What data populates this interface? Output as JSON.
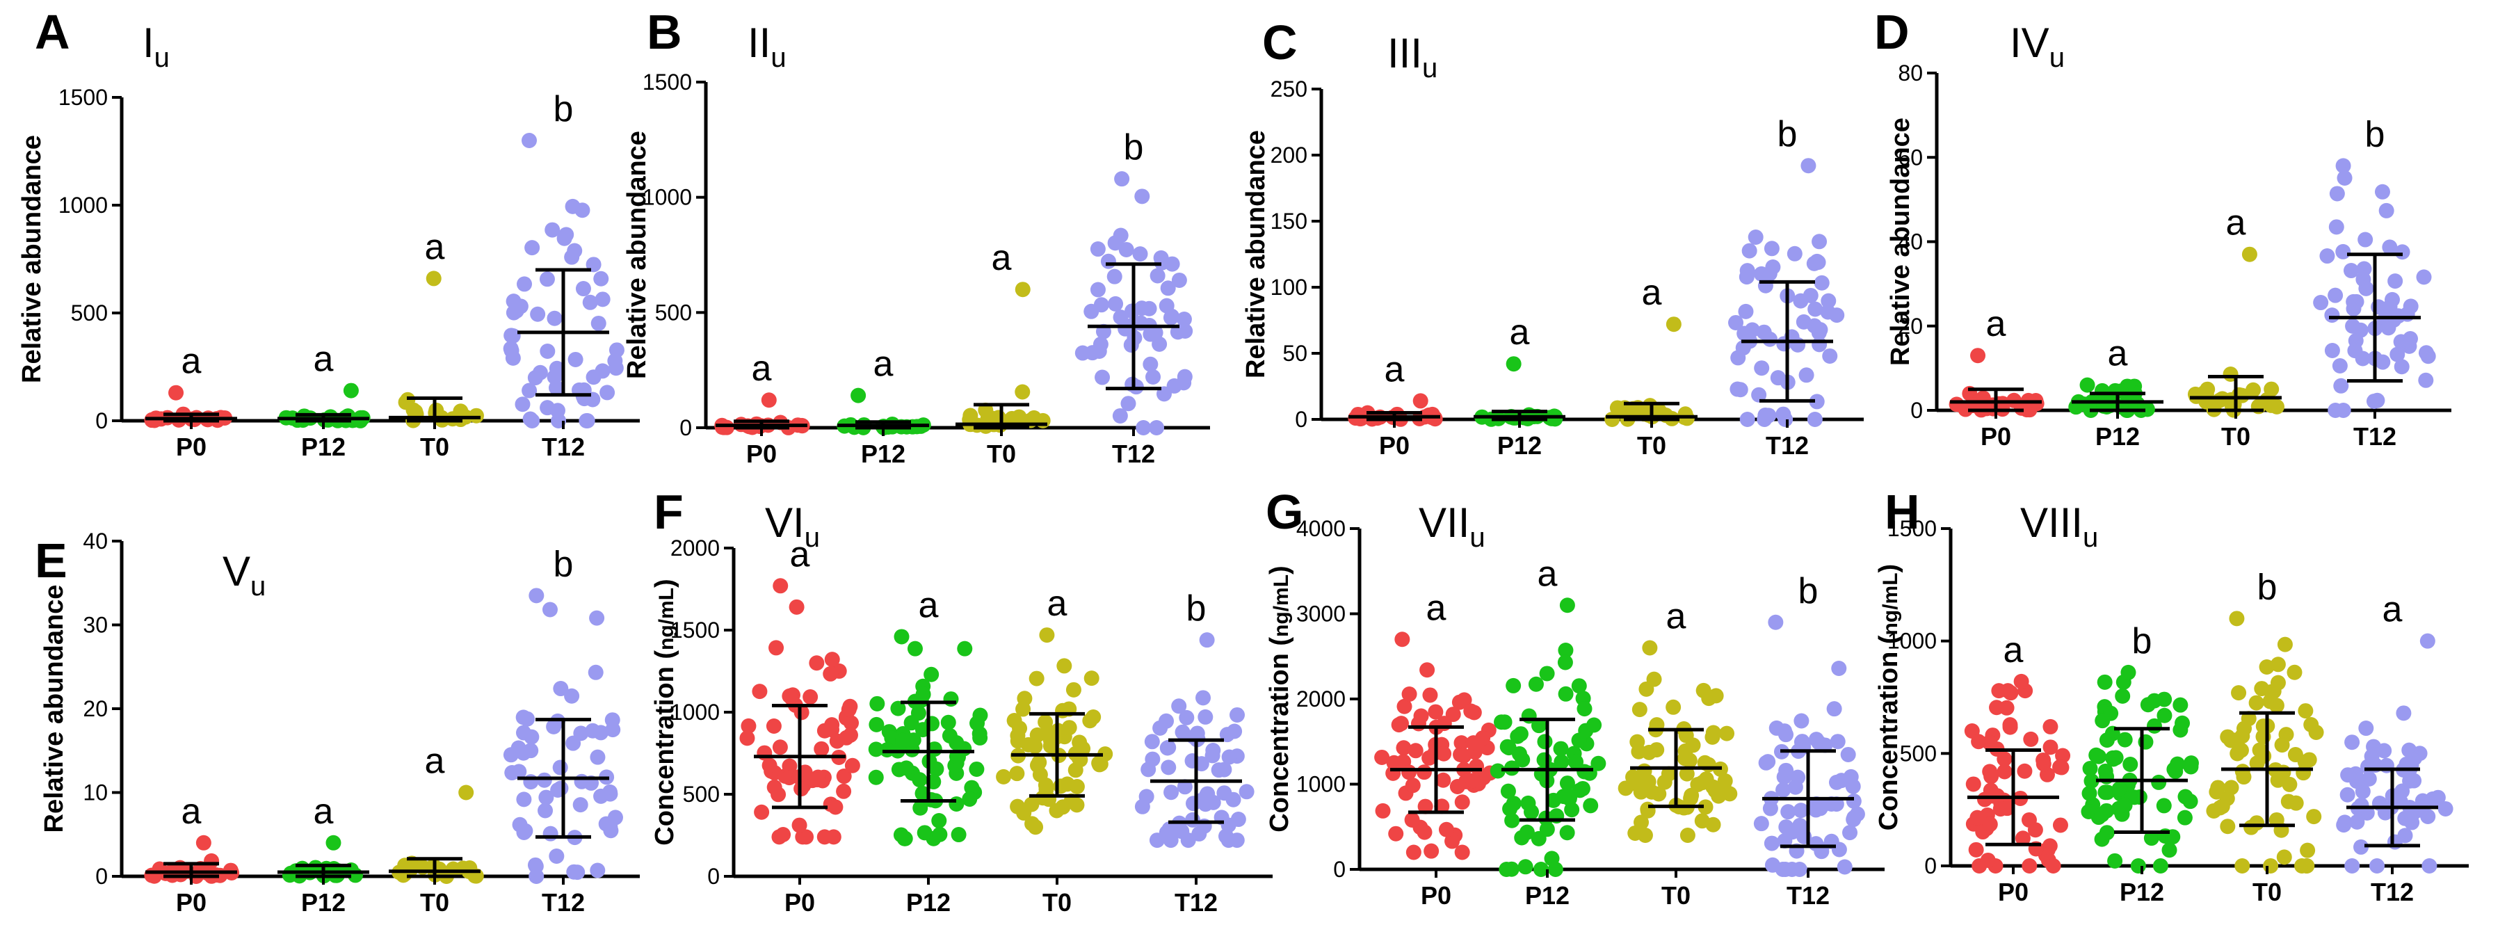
{
  "figure": {
    "background": "#ffffff"
  },
  "colors": {
    "P0": "#ef4545",
    "P12": "#19c419",
    "T0": "#c2bc1a",
    "T12": "#9a9af0"
  },
  "chart_data": [
    {
      "type": "scatter",
      "panel": "A",
      "title": "I",
      "subscript": "u",
      "ylabel": "Relative abundance",
      "ylim": [
        0,
        1500
      ],
      "yticks": [
        0,
        500,
        1000,
        1500
      ],
      "categories": [
        "P0",
        "P12",
        "T0",
        "T12"
      ],
      "series": [
        {
          "name": "P0",
          "mean": 10,
          "sd": 20,
          "max": 130,
          "n": 18,
          "letter": "a"
        },
        {
          "name": "P12",
          "mean": 10,
          "sd": 18,
          "max": 140,
          "n": 18,
          "letter": "a"
        },
        {
          "name": "T0",
          "mean": 15,
          "sd": 90,
          "max": 660,
          "n": 18,
          "letter": "a"
        },
        {
          "name": "T12",
          "mean": 410,
          "sd": 290,
          "max": 1300,
          "n": 55,
          "letter": "b"
        }
      ]
    },
    {
      "type": "scatter",
      "panel": "B",
      "title": "II",
      "subscript": "u",
      "ylabel": "Relative abundance",
      "ylim": [
        0,
        1500
      ],
      "yticks": [
        0,
        500,
        1000,
        1500
      ],
      "categories": [
        "P0",
        "P12",
        "T0",
        "T12"
      ],
      "series": [
        {
          "name": "P0",
          "mean": 10,
          "sd": 18,
          "max": 120,
          "n": 18,
          "letter": "a"
        },
        {
          "name": "P12",
          "mean": 10,
          "sd": 15,
          "max": 140,
          "n": 18,
          "letter": "a"
        },
        {
          "name": "T0",
          "mean": 15,
          "sd": 85,
          "max": 600,
          "n": 18,
          "letter": "a"
        },
        {
          "name": "T12",
          "mean": 440,
          "sd": 270,
          "max": 1080,
          "n": 55,
          "letter": "b"
        }
      ]
    },
    {
      "type": "scatter",
      "panel": "C",
      "title": "III",
      "subscript": "u",
      "ylabel": "Relative abundance",
      "ylim": [
        0,
        250
      ],
      "yticks": [
        0,
        50,
        100,
        150,
        200,
        250
      ],
      "categories": [
        "P0",
        "P12",
        "T0",
        "T12"
      ],
      "series": [
        {
          "name": "P0",
          "mean": 2,
          "sd": 3,
          "max": 14,
          "n": 18,
          "letter": "a"
        },
        {
          "name": "P12",
          "mean": 2,
          "sd": 4,
          "max": 42,
          "n": 18,
          "letter": "a"
        },
        {
          "name": "T0",
          "mean": 2,
          "sd": 10,
          "max": 72,
          "n": 18,
          "letter": "a"
        },
        {
          "name": "T12",
          "mean": 59,
          "sd": 45,
          "max": 192,
          "n": 55,
          "letter": "b"
        }
      ]
    },
    {
      "type": "scatter",
      "panel": "D",
      "title": "IV",
      "subscript": "u",
      "ylabel": "Relative abundance",
      "ylim": [
        0,
        80
      ],
      "yticks": [
        0,
        20,
        40,
        60,
        80
      ],
      "categories": [
        "P0",
        "P12",
        "T0",
        "T12"
      ],
      "series": [
        {
          "name": "P0",
          "mean": 2,
          "sd": 3,
          "max": 13,
          "n": 24,
          "letter": "a"
        },
        {
          "name": "P12",
          "mean": 2,
          "sd": 2,
          "max": 6,
          "n": 28,
          "letter": "a"
        },
        {
          "name": "T0",
          "mean": 3,
          "sd": 5,
          "max": 37,
          "n": 22,
          "letter": "a"
        },
        {
          "name": "T12",
          "mean": 22,
          "sd": 15,
          "max": 58,
          "n": 55,
          "letter": "b"
        }
      ]
    },
    {
      "type": "scatter",
      "panel": "E",
      "title": "V",
      "subscript": "u",
      "ylabel": "Relative abundance",
      "ylim": [
        0,
        40
      ],
      "yticks": [
        0,
        10,
        20,
        30,
        40
      ],
      "categories": [
        "P0",
        "P12",
        "T0",
        "T12"
      ],
      "series": [
        {
          "name": "P0",
          "mean": 0.5,
          "sd": 1,
          "max": 4,
          "n": 20,
          "letter": "a"
        },
        {
          "name": "P12",
          "mean": 0.5,
          "sd": 0.8,
          "max": 4,
          "n": 20,
          "letter": "a"
        },
        {
          "name": "T0",
          "mean": 0.6,
          "sd": 1.5,
          "max": 10,
          "n": 20,
          "letter": "a"
        },
        {
          "name": "T12",
          "mean": 11.7,
          "sd": 7,
          "max": 33.5,
          "n": 55,
          "letter": "b"
        }
      ]
    },
    {
      "type": "scatter",
      "panel": "F",
      "title": "VI",
      "subscript": "u",
      "ylabel": "Concentration (",
      "ylabel_glyph": "ng/mL",
      "ylabel_end": ")",
      "ylim": [
        0,
        2000
      ],
      "yticks": [
        0,
        500,
        1000,
        1500,
        2000
      ],
      "categories": [
        "P0",
        "P12",
        "T0",
        "T12"
      ],
      "series": [
        {
          "name": "P0",
          "mean": 730,
          "sd": 310,
          "min": 240,
          "max": 1770,
          "n": 60,
          "letter": "a"
        },
        {
          "name": "P12",
          "mean": 760,
          "sd": 300,
          "min": 230,
          "max": 1460,
          "n": 62,
          "letter": "a"
        },
        {
          "name": "T0",
          "mean": 740,
          "sd": 250,
          "min": 300,
          "max": 1470,
          "n": 58,
          "letter": "a"
        },
        {
          "name": "T12",
          "mean": 580,
          "sd": 250,
          "min": 220,
          "max": 1440,
          "n": 58,
          "letter": "b"
        }
      ]
    },
    {
      "type": "scatter",
      "panel": "G",
      "title": "VII",
      "subscript": "u",
      "ylabel": "Concentration (",
      "ylabel_glyph": "ng/mL",
      "ylabel_end": ")",
      "ylim": [
        0,
        4000
      ],
      "yticks": [
        0,
        1000,
        2000,
        3000,
        4000
      ],
      "categories": [
        "P0",
        "P12",
        "T0",
        "T12"
      ],
      "series": [
        {
          "name": "P0",
          "mean": 1170,
          "sd": 500,
          "min": 200,
          "max": 2700,
          "n": 62,
          "letter": "a"
        },
        {
          "name": "P12",
          "mean": 1170,
          "sd": 590,
          "min": 0,
          "max": 3100,
          "n": 65,
          "letter": "a"
        },
        {
          "name": "T0",
          "mean": 1190,
          "sd": 450,
          "min": 400,
          "max": 2600,
          "n": 60,
          "letter": "a"
        },
        {
          "name": "T12",
          "mean": 830,
          "sd": 560,
          "min": 0,
          "max": 2900,
          "n": 60,
          "letter": "b"
        }
      ]
    },
    {
      "type": "scatter",
      "panel": "H",
      "title": "VIII",
      "subscript": "u",
      "ylabel": "Concentration (",
      "ylabel_glyph": "ng/mL",
      "ylabel_end": ")",
      "ylim": [
        0,
        1500
      ],
      "yticks": [
        0,
        500,
        1000,
        1500
      ],
      "categories": [
        "P0",
        "P12",
        "T0",
        "T12"
      ],
      "series": [
        {
          "name": "P0",
          "mean": 305,
          "sd": 210,
          "min": 0,
          "max": 820,
          "n": 60,
          "letter": "a"
        },
        {
          "name": "P12",
          "mean": 380,
          "sd": 230,
          "min": 0,
          "max": 860,
          "n": 65,
          "letter": "b"
        },
        {
          "name": "T0",
          "mean": 430,
          "sd": 250,
          "min": 0,
          "max": 1100,
          "n": 62,
          "letter": "b"
        },
        {
          "name": "T12",
          "mean": 260,
          "sd": 170,
          "min": 0,
          "max": 1000,
          "n": 55,
          "letter": "a"
        }
      ]
    }
  ]
}
